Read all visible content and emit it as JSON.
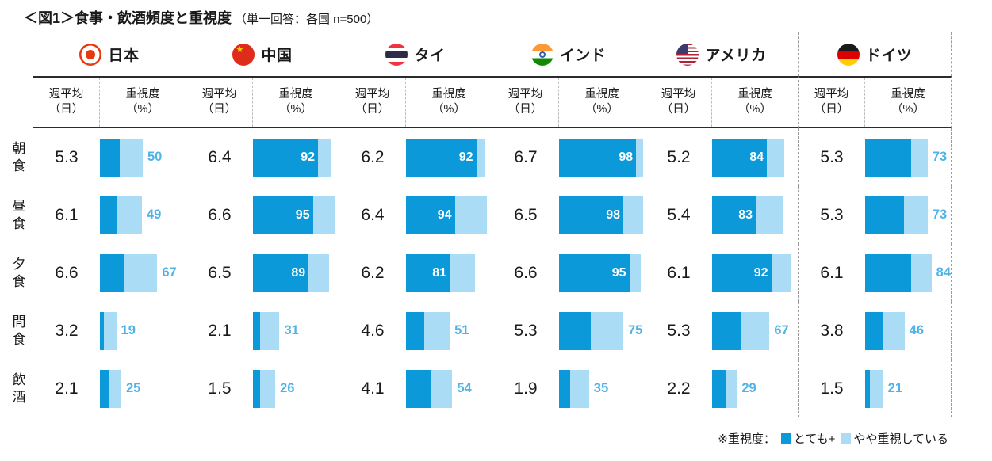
{
  "title": {
    "main": "＜図1＞食事・飲酒頻度と重視度",
    "note": "（単一回答：各国 n=500）"
  },
  "subheader": {
    "weekly": [
      "週平均",
      "（日）"
    ],
    "importance": [
      "重視度",
      "（%）"
    ]
  },
  "legend": {
    "prefix": "※重視度：",
    "very_label": "とても+",
    "somewhat_label": "やや重視している"
  },
  "colors": {
    "very": "#0c99d9",
    "somewhat": "#aadcf6",
    "value_label": "#4fb3e8",
    "rule": "#2b2b2b"
  },
  "chart_data": {
    "type": "bar",
    "orientation": "horizontal",
    "stacked": true,
    "title": "＜図1＞食事・飲酒頻度と重視度",
    "subtitle": "（単一回答：各国 n=500）",
    "sample_note": "各国 n=500",
    "categories": [
      "朝食",
      "昼食",
      "夕食",
      "間食",
      "飲酒"
    ],
    "value_columns": [
      "週平均（日）",
      "重視度（%）"
    ],
    "series_legend": [
      "とても重視している",
      "やや重視している"
    ],
    "xlim": [
      0,
      100
    ],
    "countries": [
      {
        "name": "日本",
        "flag": "japan",
        "weekly_avg": [
          5.3,
          6.1,
          6.6,
          3.2,
          2.1
        ],
        "importance_total": [
          50,
          49,
          67,
          19,
          25
        ],
        "importance_very": [
          23,
          20,
          29,
          5,
          11
        ],
        "importance_somewhat": [
          27,
          29,
          38,
          14,
          14
        ],
        "label_inside": [
          false,
          false,
          false,
          false,
          false
        ]
      },
      {
        "name": "中国",
        "flag": "china",
        "weekly_avg": [
          6.4,
          6.6,
          6.5,
          2.1,
          1.5
        ],
        "importance_total": [
          92,
          95,
          89,
          31,
          26
        ],
        "importance_very": [
          76,
          70,
          65,
          8,
          8
        ],
        "importance_somewhat": [
          16,
          25,
          24,
          23,
          18
        ],
        "label_inside": [
          true,
          true,
          true,
          false,
          false
        ]
      },
      {
        "name": "タイ",
        "flag": "thailand",
        "weekly_avg": [
          6.2,
          6.4,
          6.2,
          4.6,
          4.1
        ],
        "importance_total": [
          92,
          94,
          81,
          51,
          54
        ],
        "importance_very": [
          82,
          57,
          51,
          21,
          30
        ],
        "importance_somewhat": [
          10,
          37,
          30,
          30,
          24
        ],
        "label_inside": [
          true,
          true,
          true,
          false,
          false
        ]
      },
      {
        "name": "インド",
        "flag": "india",
        "weekly_avg": [
          6.7,
          6.5,
          6.6,
          5.3,
          1.9
        ],
        "importance_total": [
          98,
          98,
          95,
          75,
          35
        ],
        "importance_very": [
          90,
          75,
          82,
          37,
          13
        ],
        "importance_somewhat": [
          8,
          23,
          13,
          38,
          22
        ],
        "label_inside": [
          true,
          true,
          true,
          false,
          false
        ]
      },
      {
        "name": "アメリカ",
        "flag": "usa",
        "weekly_avg": [
          5.2,
          5.4,
          6.1,
          5.3,
          2.2
        ],
        "importance_total": [
          84,
          83,
          92,
          67,
          29
        ],
        "importance_very": [
          64,
          51,
          69,
          34,
          17
        ],
        "importance_somewhat": [
          20,
          32,
          23,
          33,
          12
        ],
        "label_inside": [
          true,
          true,
          true,
          false,
          false
        ]
      },
      {
        "name": "ドイツ",
        "flag": "germany",
        "weekly_avg": [
          5.3,
          5.3,
          6.1,
          3.8,
          1.5
        ],
        "importance_total": [
          73,
          73,
          84,
          46,
          21
        ],
        "importance_very": [
          54,
          45,
          58,
          20,
          6
        ],
        "importance_somewhat": [
          19,
          28,
          26,
          26,
          15
        ],
        "label_inside": [
          false,
          false,
          false,
          false,
          false
        ]
      }
    ]
  }
}
